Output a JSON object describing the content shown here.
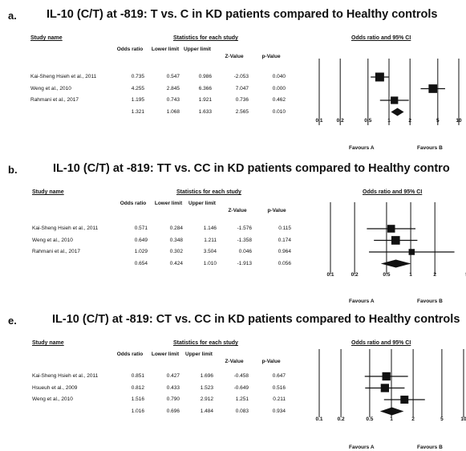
{
  "colors": {
    "ink": "#111111",
    "background": "#ffffff"
  },
  "chart_data": [
    {
      "type": "forest",
      "panel_label": "a.",
      "title": "IL-10 (C/T) at -819: T vs. C in KD patients compared to Healthy controls",
      "headers": {
        "study_name": "Study name",
        "stats_group": "Statistics for each study",
        "plot_title": "Odds ratio and 95% CI",
        "columns": [
          "Odds ratio",
          "Lower limit",
          "Upper limit",
          "Z-Value",
          "p-Value"
        ]
      },
      "rows": [
        {
          "study": "Kai-Sheng Hsieh et al., 2011",
          "or": "0.735",
          "lower": "0.547",
          "upper": "0.986",
          "z": "-2.053",
          "p": "0.040",
          "or_v": 0.735,
          "lo_v": 0.547,
          "hi_v": 0.986,
          "weight": 1.0
        },
        {
          "study": "Weng et al., 2010",
          "or": "4.255",
          "lower": "2.845",
          "upper": "6.366",
          "z": "7.047",
          "p": "0.000",
          "or_v": 4.255,
          "lo_v": 2.845,
          "hi_v": 6.366,
          "weight": 0.95
        },
        {
          "study": "Rahmani et al., 2017",
          "or": "1.195",
          "lower": "0.743",
          "upper": "1.921",
          "z": "0.736",
          "p": "0.462",
          "or_v": 1.195,
          "lo_v": 0.743,
          "hi_v": 1.921,
          "weight": 0.75
        }
      ],
      "summary": {
        "or": "1.321",
        "lower": "1.068",
        "upper": "1.633",
        "z": "2.565",
        "p": "0.010",
        "or_v": 1.321,
        "lo_v": 1.068,
        "hi_v": 1.633
      },
      "x_scale": "log",
      "x_ticks": [
        0.1,
        0.2,
        0.5,
        1,
        2,
        5,
        10
      ],
      "x_tick_labels": [
        "0.1",
        "0.2",
        "0.5",
        "1",
        "2",
        "5",
        "10"
      ],
      "favours_left": "Favours A",
      "favours_right": "Favours B"
    },
    {
      "type": "forest",
      "panel_label": "b.",
      "title": "IL-10 (C/T) at -819: TT vs. CC in KD patients compared to Healthy contro",
      "headers": {
        "study_name": "Study name",
        "stats_group": "Statistics for each study",
        "plot_title": "Odds ratio and 95% CI",
        "columns": [
          "Odds ratio",
          "Lower limit",
          "Upper limit",
          "Z-Value",
          "p-Value"
        ]
      },
      "rows": [
        {
          "study": "Kai-Sheng Hsieh et al., 2011",
          "or": "0.571",
          "lower": "0.284",
          "upper": "1.146",
          "z": "-1.576",
          "p": "0.115",
          "or_v": 0.571,
          "lo_v": 0.284,
          "hi_v": 1.146,
          "weight": 0.8
        },
        {
          "study": "Weng et al., 2010",
          "or": "0.649",
          "lower": "0.348",
          "upper": "1.211",
          "z": "-1.358",
          "p": "0.174",
          "or_v": 0.649,
          "lo_v": 0.348,
          "hi_v": 1.211,
          "weight": 0.95
        },
        {
          "study": "Rahmani et al., 2017",
          "or": "1.029",
          "lower": "0.302",
          "upper": "3.504",
          "z": "0.046",
          "p": "0.964",
          "or_v": 1.029,
          "lo_v": 0.302,
          "hi_v": 3.504,
          "weight": 0.5
        }
      ],
      "summary": {
        "or": "0.654",
        "lower": "0.424",
        "upper": "1.010",
        "z": "-1.913",
        "p": "0.056",
        "or_v": 0.654,
        "lo_v": 0.424,
        "hi_v": 1.01
      },
      "x_scale": "log",
      "x_ticks": [
        0.1,
        0.2,
        0.5,
        1,
        2,
        5
      ],
      "x_tick_labels": [
        "0.1",
        "0.2",
        "0.5",
        "1",
        "2",
        "5"
      ],
      "favours_left": "Favours A",
      "favours_right": "Favours B"
    },
    {
      "type": "forest",
      "panel_label": "e.",
      "title": "IL-10 (C/T) at -819: CT vs. CC in KD patients compared to Healthy controls",
      "headers": {
        "study_name": "Study name",
        "stats_group": "Statistics for each study",
        "plot_title": "Odds ratio and 95% CI",
        "columns": [
          "Odds ratio",
          "Lower limit",
          "Upper limit",
          "Z-Value",
          "p-Value"
        ]
      },
      "rows": [
        {
          "study": "Kai-Sheng Hsieh et al., 2011",
          "or": "0.851",
          "lower": "0.427",
          "upper": "1.696",
          "z": "-0.458",
          "p": "0.647",
          "or_v": 0.851,
          "lo_v": 0.427,
          "hi_v": 1.696,
          "weight": 0.9
        },
        {
          "study": "Hsueuh et al., 2009",
          "or": "0.812",
          "lower": "0.433",
          "upper": "1.523",
          "z": "-0.649",
          "p": "0.516",
          "or_v": 0.812,
          "lo_v": 0.433,
          "hi_v": 1.523,
          "weight": 0.9
        },
        {
          "study": "Weng et al., 2010",
          "or": "1.516",
          "lower": "0.790",
          "upper": "2.912",
          "z": "1.251",
          "p": "0.211",
          "or_v": 1.516,
          "lo_v": 0.79,
          "hi_v": 2.912,
          "weight": 0.85
        }
      ],
      "summary": {
        "or": "1.016",
        "lower": "0.696",
        "upper": "1.484",
        "z": "0.083",
        "p": "0.934",
        "or_v": 1.016,
        "lo_v": 0.696,
        "hi_v": 1.484
      },
      "x_scale": "log",
      "x_ticks": [
        0.1,
        0.2,
        0.5,
        1,
        2,
        5,
        10
      ],
      "x_tick_labels": [
        "0.1",
        "0.2",
        "0.5",
        "1",
        "2",
        "5",
        "10"
      ],
      "favours_left": "Favours A",
      "favours_right": "Favours B"
    }
  ]
}
